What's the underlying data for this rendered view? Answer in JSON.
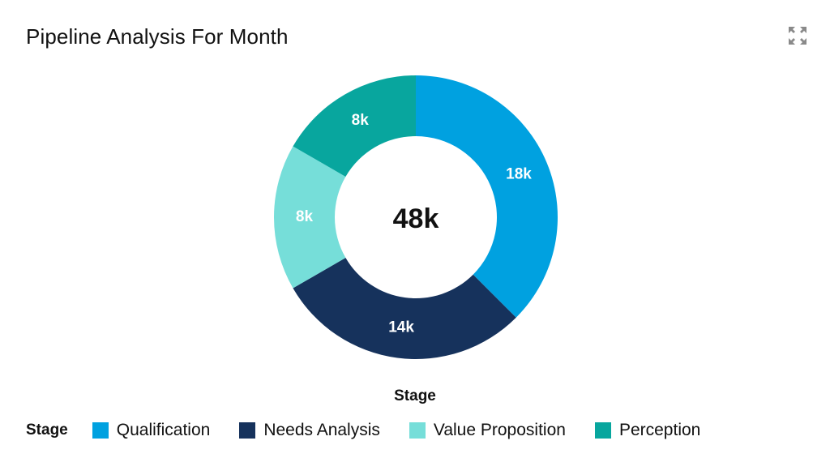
{
  "header": {
    "title": "Pipeline Analysis For Month",
    "expand_icon": "expand-icon"
  },
  "chart_data": {
    "type": "pie",
    "variant": "donut",
    "title": "Pipeline Analysis For Month",
    "center_label": "48k",
    "xlabel": "Stage",
    "legend_title": "Stage",
    "legend_position": "bottom-left",
    "categories": [
      "Qualification",
      "Needs Analysis",
      "Value Proposition",
      "Perception"
    ],
    "values": [
      18,
      14,
      8,
      8
    ],
    "value_labels": [
      "18k",
      "14k",
      "8k",
      "8k"
    ],
    "colors": [
      "#00A1E0",
      "#16325C",
      "#76DED9",
      "#08A69E"
    ]
  }
}
